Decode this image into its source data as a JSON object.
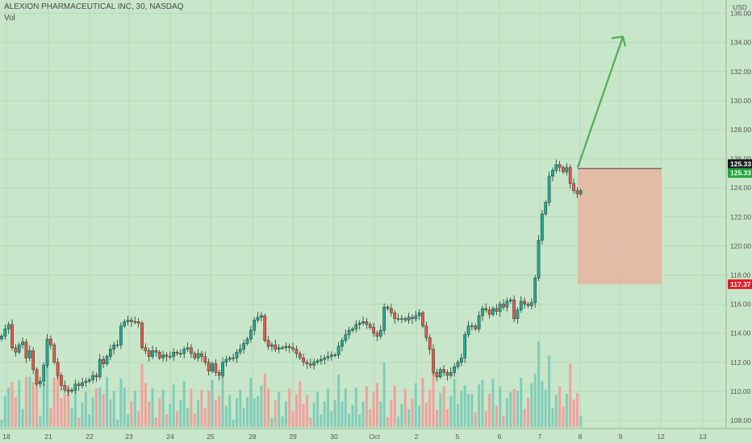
{
  "header": {
    "symbol_line": "ALEXION PHARMACEUTICAL INC, 30, NASDAQ",
    "volume_label": "Vol"
  },
  "axis_currency": "USD",
  "colors": {
    "background": "#c8e6c9",
    "up_candle": "#26a69a",
    "down_candle": "#ef5350",
    "up_volume": "#7fcdbb",
    "down_volume": "#f2a09c",
    "arrow": "#4caf50",
    "target_box": "#e8b4a0",
    "tag_last": "#1b1b1b",
    "tag_current": "#22a33a",
    "tag_stop": "#e01e2a"
  },
  "price_tags": [
    {
      "label": "125.33",
      "value": 125.33,
      "color_key": "tag_last"
    },
    {
      "label": "125.33",
      "value": 125.33,
      "color_key": "tag_current"
    },
    {
      "label": "117.37",
      "value": 117.37,
      "color_key": "tag_stop"
    }
  ],
  "chart_data": {
    "type": "candlestick",
    "title": "ALEXION PHARMACEUTICAL INC, 30, NASDAQ",
    "ylim": [
      107.6,
      136.4
    ],
    "y_ticks": [
      108.0,
      110.0,
      112.0,
      114.0,
      116.0,
      118.0,
      120.0,
      122.0,
      124.0,
      126.0,
      128.0,
      130.0,
      132.0,
      134.0,
      136.0
    ],
    "x_labels": [
      "18",
      "21",
      "22",
      "23",
      "24",
      "25",
      "28",
      "29",
      "30",
      "Oct",
      "2",
      "5",
      "6",
      "7",
      "8",
      "9",
      "12",
      "13"
    ],
    "grid": true,
    "closes": [
      113.8,
      114.3,
      114.6,
      113.0,
      112.7,
      113.2,
      113.4,
      112.3,
      112.8,
      111.5,
      110.5,
      110.7,
      111.8,
      113.6,
      113.2,
      112.0,
      111.1,
      110.4,
      110.1,
      110.0,
      110.1,
      110.5,
      110.4,
      110.6,
      110.7,
      110.8,
      111.1,
      111.0,
      112.2,
      111.9,
      112.4,
      112.9,
      113.2,
      113.2,
      114.5,
      114.8,
      114.9,
      114.8,
      114.8,
      114.7,
      113.0,
      112.8,
      112.4,
      112.8,
      112.7,
      112.3,
      112.5,
      112.4,
      112.4,
      112.7,
      112.6,
      112.6,
      112.9,
      113.0,
      112.6,
      112.3,
      112.6,
      112.4,
      112.0,
      111.4,
      111.9,
      111.3,
      111.1,
      112.0,
      112.2,
      112.3,
      112.3,
      112.7,
      112.9,
      113.3,
      113.6,
      114.2,
      114.9,
      115.1,
      115.2,
      113.5,
      113.1,
      113.2,
      112.9,
      113.0,
      113.0,
      113.1,
      113.0,
      112.9,
      112.6,
      112.3,
      112.0,
      111.9,
      111.8,
      112.0,
      112.1,
      112.2,
      112.3,
      112.4,
      112.5,
      112.5,
      113.1,
      113.5,
      113.9,
      114.2,
      114.3,
      114.6,
      114.7,
      114.8,
      114.6,
      114.4,
      114.0,
      113.8,
      114.2,
      115.8,
      115.7,
      115.4,
      115.0,
      115.0,
      115.0,
      114.9,
      115.1,
      115.0,
      115.2,
      115.4,
      114.5,
      113.7,
      112.9,
      111.3,
      111.0,
      111.5,
      111.3,
      111.1,
      111.3,
      111.7,
      112.0,
      112.3,
      113.9,
      114.5,
      114.5,
      114.3,
      115.2,
      115.7,
      115.6,
      115.3,
      115.7,
      115.5,
      116.0,
      115.8,
      116.2,
      116.3,
      115.0,
      115.6,
      116.2,
      116.0,
      115.9,
      116.1,
      117.8,
      120.4,
      122.2,
      123.0,
      124.8,
      125.2,
      125.6,
      125.4,
      125.1,
      125.4,
      124.3,
      123.8,
      123.6,
      123.8
    ],
    "volume_ylim": [
      0,
      27
    ],
    "target_box": {
      "x_from": "8",
      "price_top": 125.33,
      "price_bottom": 117.37
    },
    "projection_arrow": {
      "from_price": 125.4,
      "to_price": 134.4
    }
  }
}
